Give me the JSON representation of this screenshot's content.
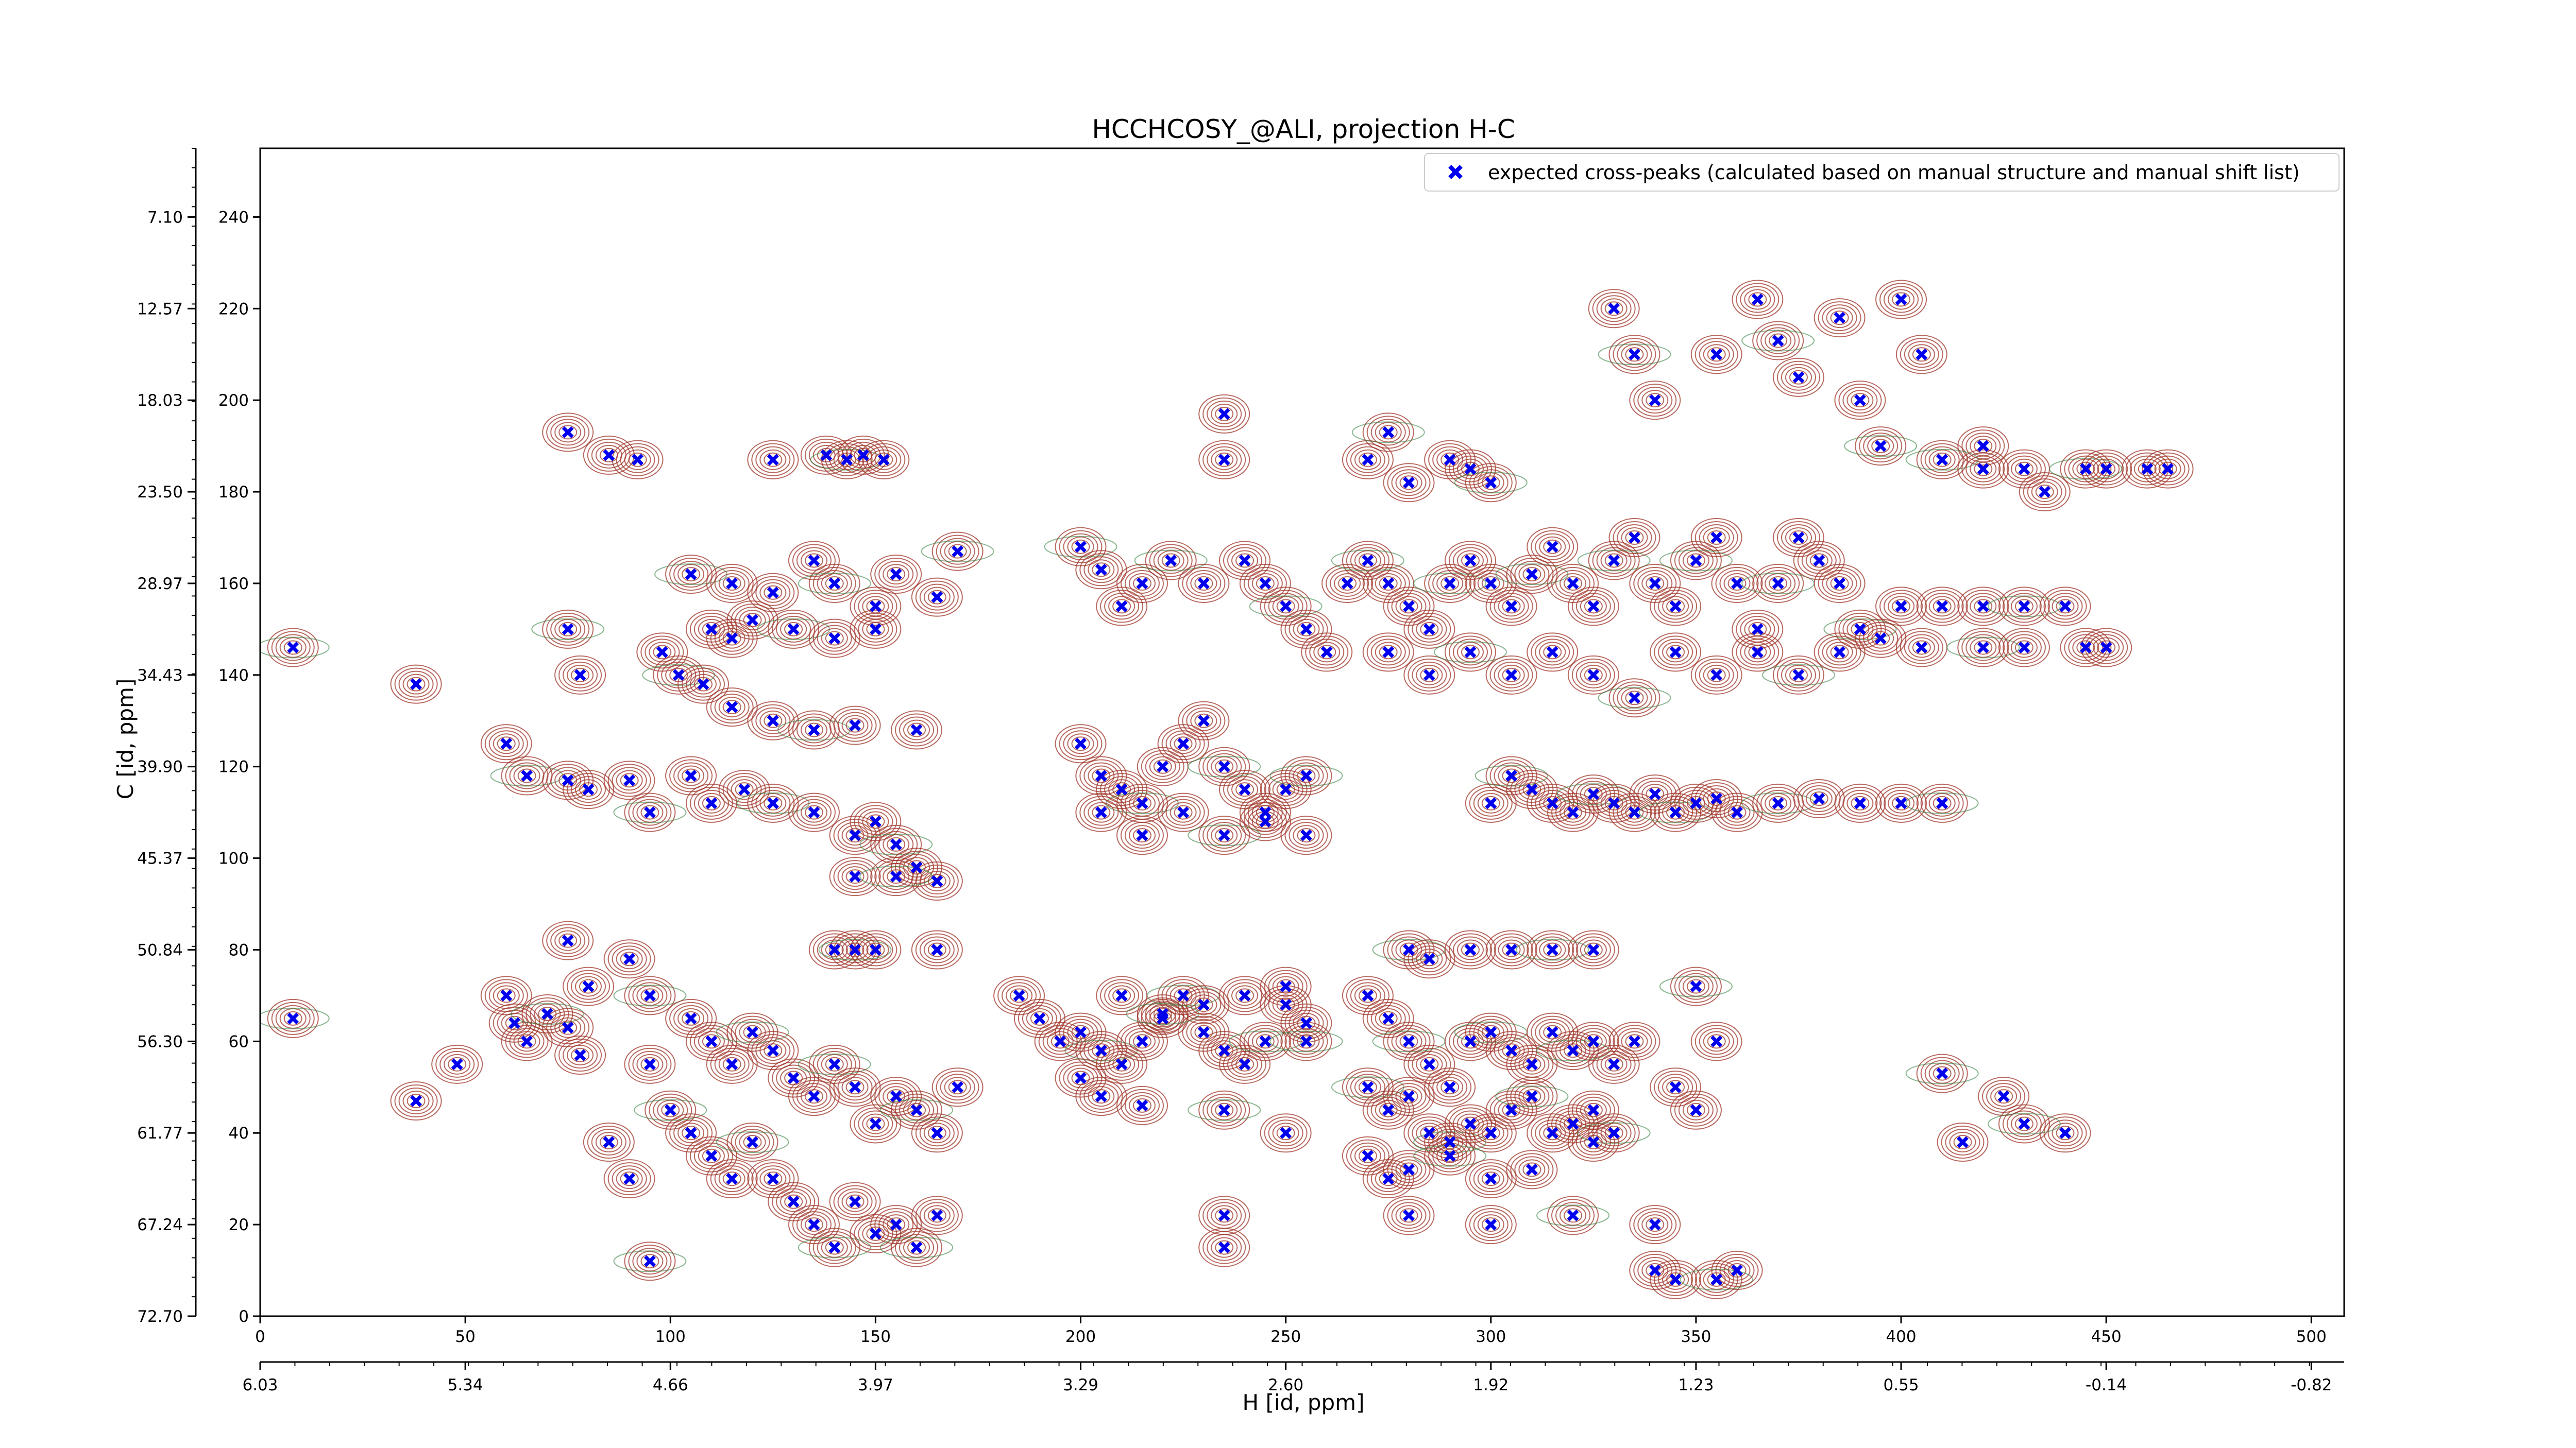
{
  "chart_data": {
    "type": "scatter",
    "title": "HCCHCOSY_@ALI, projection H-C",
    "xlabel": "H [id, ppm]",
    "ylabel": "C [id, ppm]",
    "x_index_ticks": [
      "0",
      "50",
      "100",
      "150",
      "200",
      "250",
      "300",
      "350",
      "400",
      "450",
      "500"
    ],
    "x_ppm_ticks": [
      "6.03",
      "5.34",
      "4.66",
      "3.97",
      "3.29",
      "2.60",
      "1.92",
      "1.23",
      "0.55",
      "-0.14",
      "-0.82"
    ],
    "y_index_ticks": [
      "0",
      "20",
      "40",
      "60",
      "80",
      "100",
      "120",
      "140",
      "160",
      "180",
      "200",
      "220",
      "240"
    ],
    "y_ppm_ticks": [
      "72.70",
      "67.24",
      "61.77",
      "56.30",
      "50.84",
      "45.37",
      "39.90",
      "34.43",
      "28.97",
      "23.50",
      "18.03",
      "12.57",
      "7.10"
    ],
    "xlim": [
      0,
      508
    ],
    "ylim": [
      0,
      255
    ],
    "grid": false,
    "legend_position": "top-right",
    "colors": {
      "positive_contours": "#a0352a",
      "negative_contours": "#2e7d3a",
      "markers": "#0000ee"
    },
    "series": [
      {
        "name": "expected cross-peaks (calculated based on manual structure and manual shift list)",
        "marker": "x",
        "points": [
          [
            8,
            146
          ],
          [
            38,
            138
          ],
          [
            48,
            55
          ],
          [
            38,
            47
          ],
          [
            8,
            65
          ],
          [
            75,
            193
          ],
          [
            85,
            188
          ],
          [
            92,
            187
          ],
          [
            75,
            150
          ],
          [
            78,
            140
          ],
          [
            125,
            187
          ],
          [
            138,
            188
          ],
          [
            143,
            187
          ],
          [
            147,
            188
          ],
          [
            152,
            187
          ],
          [
            270,
            187
          ],
          [
            275,
            193
          ],
          [
            280,
            182
          ],
          [
            290,
            187
          ],
          [
            295,
            185
          ],
          [
            300,
            182
          ],
          [
            235,
            197
          ],
          [
            235,
            187
          ],
          [
            330,
            220
          ],
          [
            335,
            210
          ],
          [
            340,
            200
          ],
          [
            355,
            210
          ],
          [
            365,
            222
          ],
          [
            370,
            213
          ],
          [
            375,
            205
          ],
          [
            385,
            218
          ],
          [
            390,
            200
          ],
          [
            395,
            190
          ],
          [
            400,
            222
          ],
          [
            405,
            210
          ],
          [
            420,
            190
          ],
          [
            410,
            187
          ],
          [
            420,
            185
          ],
          [
            430,
            185
          ],
          [
            435,
            180
          ],
          [
            445,
            185
          ],
          [
            450,
            185
          ],
          [
            460,
            185
          ],
          [
            465,
            185
          ],
          [
            200,
            168
          ],
          [
            205,
            163
          ],
          [
            210,
            155
          ],
          [
            215,
            160
          ],
          [
            222,
            165
          ],
          [
            230,
            160
          ],
          [
            240,
            165
          ],
          [
            245,
            160
          ],
          [
            250,
            155
          ],
          [
            255,
            150
          ],
          [
            260,
            145
          ],
          [
            265,
            160
          ],
          [
            270,
            165
          ],
          [
            275,
            160
          ],
          [
            280,
            155
          ],
          [
            285,
            150
          ],
          [
            290,
            160
          ],
          [
            295,
            165
          ],
          [
            300,
            160
          ],
          [
            305,
            155
          ],
          [
            310,
            162
          ],
          [
            315,
            168
          ],
          [
            320,
            160
          ],
          [
            325,
            155
          ],
          [
            330,
            165
          ],
          [
            335,
            170
          ],
          [
            340,
            160
          ],
          [
            345,
            155
          ],
          [
            350,
            165
          ],
          [
            355,
            170
          ],
          [
            360,
            160
          ],
          [
            365,
            150
          ],
          [
            370,
            160
          ],
          [
            375,
            170
          ],
          [
            380,
            165
          ],
          [
            385,
            160
          ],
          [
            390,
            150
          ],
          [
            400,
            155
          ],
          [
            410,
            155
          ],
          [
            420,
            155
          ],
          [
            430,
            155
          ],
          [
            440,
            155
          ],
          [
            275,
            145
          ],
          [
            285,
            140
          ],
          [
            295,
            145
          ],
          [
            305,
            140
          ],
          [
            315,
            145
          ],
          [
            325,
            140
          ],
          [
            335,
            135
          ],
          [
            345,
            145
          ],
          [
            355,
            140
          ],
          [
            365,
            145
          ],
          [
            375,
            140
          ],
          [
            385,
            145
          ],
          [
            395,
            148
          ],
          [
            405,
            146
          ],
          [
            420,
            146
          ],
          [
            430,
            146
          ],
          [
            445,
            146
          ],
          [
            450,
            146
          ],
          [
            105,
            162
          ],
          [
            115,
            160
          ],
          [
            125,
            158
          ],
          [
            135,
            165
          ],
          [
            140,
            160
          ],
          [
            150,
            155
          ],
          [
            155,
            162
          ],
          [
            165,
            157
          ],
          [
            170,
            167
          ],
          [
            110,
            150
          ],
          [
            115,
            148
          ],
          [
            120,
            152
          ],
          [
            130,
            150
          ],
          [
            140,
            148
          ],
          [
            150,
            150
          ],
          [
            98,
            145
          ],
          [
            102,
            140
          ],
          [
            108,
            138
          ],
          [
            115,
            133
          ],
          [
            125,
            130
          ],
          [
            135,
            128
          ],
          [
            145,
            129
          ],
          [
            160,
            128
          ],
          [
            60,
            125
          ],
          [
            65,
            118
          ],
          [
            75,
            117
          ],
          [
            80,
            115
          ],
          [
            90,
            117
          ],
          [
            95,
            110
          ],
          [
            105,
            118
          ],
          [
            110,
            112
          ],
          [
            118,
            115
          ],
          [
            125,
            112
          ],
          [
            135,
            110
          ],
          [
            145,
            105
          ],
          [
            150,
            108
          ],
          [
            155,
            103
          ],
          [
            160,
            98
          ],
          [
            165,
            95
          ],
          [
            145,
            96
          ],
          [
            155,
            96
          ],
          [
            200,
            125
          ],
          [
            205,
            118
          ],
          [
            210,
            115
          ],
          [
            215,
            112
          ],
          [
            220,
            120
          ],
          [
            225,
            125
          ],
          [
            230,
            130
          ],
          [
            235,
            120
          ],
          [
            240,
            115
          ],
          [
            245,
            110
          ],
          [
            250,
            115
          ],
          [
            255,
            118
          ],
          [
            205,
            110
          ],
          [
            215,
            105
          ],
          [
            225,
            110
          ],
          [
            235,
            105
          ],
          [
            245,
            108
          ],
          [
            255,
            105
          ],
          [
            300,
            112
          ],
          [
            305,
            118
          ],
          [
            310,
            115
          ],
          [
            315,
            112
          ],
          [
            320,
            110
          ],
          [
            325,
            114
          ],
          [
            330,
            112
          ],
          [
            335,
            110
          ],
          [
            340,
            114
          ],
          [
            345,
            110
          ],
          [
            350,
            112
          ],
          [
            355,
            113
          ],
          [
            360,
            110
          ],
          [
            370,
            112
          ],
          [
            380,
            113
          ],
          [
            390,
            112
          ],
          [
            400,
            112
          ],
          [
            410,
            112
          ],
          [
            75,
            82
          ],
          [
            80,
            72
          ],
          [
            90,
            78
          ],
          [
            95,
            70
          ],
          [
            105,
            65
          ],
          [
            110,
            60
          ],
          [
            115,
            55
          ],
          [
            120,
            62
          ],
          [
            125,
            58
          ],
          [
            130,
            52
          ],
          [
            135,
            48
          ],
          [
            140,
            55
          ],
          [
            145,
            50
          ],
          [
            150,
            42
          ],
          [
            155,
            48
          ],
          [
            160,
            45
          ],
          [
            165,
            40
          ],
          [
            170,
            50
          ],
          [
            95,
            55
          ],
          [
            100,
            45
          ],
          [
            105,
            40
          ],
          [
            110,
            35
          ],
          [
            115,
            30
          ],
          [
            120,
            38
          ],
          [
            125,
            30
          ],
          [
            130,
            25
          ],
          [
            135,
            20
          ],
          [
            140,
            15
          ],
          [
            145,
            25
          ],
          [
            150,
            18
          ],
          [
            155,
            20
          ],
          [
            160,
            15
          ],
          [
            165,
            22
          ],
          [
            85,
            38
          ],
          [
            90,
            30
          ],
          [
            95,
            12
          ],
          [
            60,
            70
          ],
          [
            62,
            64
          ],
          [
            65,
            60
          ],
          [
            70,
            66
          ],
          [
            75,
            63
          ],
          [
            78,
            57
          ],
          [
            140,
            80
          ],
          [
            145,
            80
          ],
          [
            150,
            80
          ],
          [
            165,
            80
          ],
          [
            200,
            62
          ],
          [
            205,
            58
          ],
          [
            210,
            55
          ],
          [
            215,
            60
          ],
          [
            220,
            65
          ],
          [
            225,
            70
          ],
          [
            230,
            62
          ],
          [
            235,
            58
          ],
          [
            240,
            55
          ],
          [
            245,
            60
          ],
          [
            250,
            68
          ],
          [
            255,
            64
          ],
          [
            210,
            70
          ],
          [
            220,
            66
          ],
          [
            230,
            68
          ],
          [
            240,
            70
          ],
          [
            250,
            72
          ],
          [
            255,
            60
          ],
          [
            200,
            52
          ],
          [
            205,
            48
          ],
          [
            215,
            46
          ],
          [
            235,
            45
          ],
          [
            250,
            40
          ],
          [
            270,
            70
          ],
          [
            275,
            65
          ],
          [
            280,
            60
          ],
          [
            285,
            55
          ],
          [
            290,
            50
          ],
          [
            295,
            60
          ],
          [
            300,
            62
          ],
          [
            305,
            58
          ],
          [
            310,
            55
          ],
          [
            315,
            62
          ],
          [
            320,
            58
          ],
          [
            325,
            60
          ],
          [
            330,
            55
          ],
          [
            335,
            60
          ],
          [
            270,
            50
          ],
          [
            275,
            45
          ],
          [
            280,
            48
          ],
          [
            285,
            40
          ],
          [
            290,
            38
          ],
          [
            295,
            42
          ],
          [
            300,
            40
          ],
          [
            305,
            45
          ],
          [
            310,
            48
          ],
          [
            315,
            40
          ],
          [
            320,
            42
          ],
          [
            325,
            45
          ],
          [
            330,
            40
          ],
          [
            270,
            35
          ],
          [
            275,
            30
          ],
          [
            280,
            32
          ],
          [
            290,
            35
          ],
          [
            300,
            30
          ],
          [
            310,
            32
          ],
          [
            325,
            38
          ],
          [
            280,
            80
          ],
          [
            285,
            78
          ],
          [
            295,
            80
          ],
          [
            305,
            80
          ],
          [
            315,
            80
          ],
          [
            325,
            80
          ],
          [
            280,
            22
          ],
          [
            300,
            20
          ],
          [
            320,
            22
          ],
          [
            340,
            20
          ],
          [
            340,
            10
          ],
          [
            345,
            8
          ],
          [
            355,
            8
          ],
          [
            360,
            10
          ],
          [
            235,
            22
          ],
          [
            235,
            15
          ],
          [
            350,
            72
          ],
          [
            355,
            60
          ],
          [
            345,
            50
          ],
          [
            350,
            45
          ],
          [
            410,
            53
          ],
          [
            425,
            48
          ],
          [
            440,
            40
          ],
          [
            415,
            38
          ],
          [
            430,
            42
          ],
          [
            185,
            70
          ],
          [
            190,
            65
          ],
          [
            195,
            60
          ]
        ]
      }
    ]
  }
}
